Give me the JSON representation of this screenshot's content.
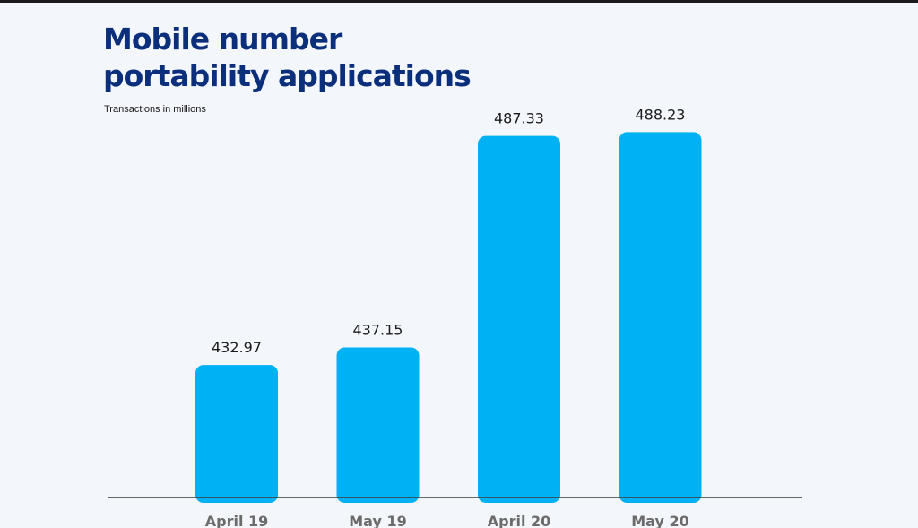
{
  "chart_data": {
    "type": "bar",
    "title": "Mobile number\nportability applications",
    "subtitle": "Transactions in millions",
    "categories": [
      "April 19",
      "May 19",
      "April 20",
      "May 20"
    ],
    "values": [
      432.97,
      437.15,
      487.33,
      488.23
    ],
    "value_labels": [
      "432.97",
      "437.15",
      "487.33",
      "488.23"
    ],
    "xlabel": "",
    "ylabel": "",
    "grid": false,
    "colors": {
      "bar": "#00b2f3",
      "title": "#0b2f7a",
      "axis": "#3a3a3a",
      "value_label": "#1a1a1a",
      "tick_label": "#6b6b6b",
      "background": "#f3f6fb"
    }
  }
}
